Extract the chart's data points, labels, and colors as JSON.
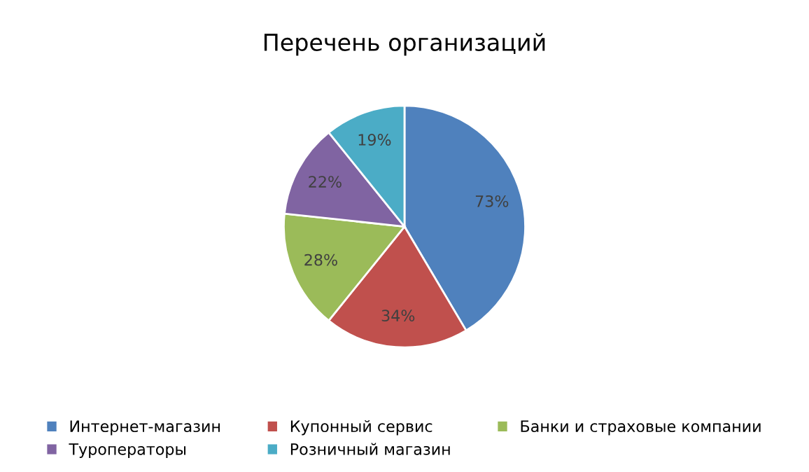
{
  "chart_data": {
    "type": "pie",
    "title": "Перечень организаций",
    "categories": [
      "Интернет-магазин",
      "Купонный сервис",
      "Банки и страховые компании",
      "Туроператоры",
      "Розничный магазин"
    ],
    "values": [
      73,
      34,
      28,
      22,
      19
    ],
    "value_labels": [
      "73%",
      "34%",
      "28%",
      "22%",
      "19%"
    ],
    "colors": [
      "#4f81bd",
      "#c0504d",
      "#9bbb59",
      "#8064a2",
      "#4bacc6"
    ],
    "legend": "bottom"
  }
}
